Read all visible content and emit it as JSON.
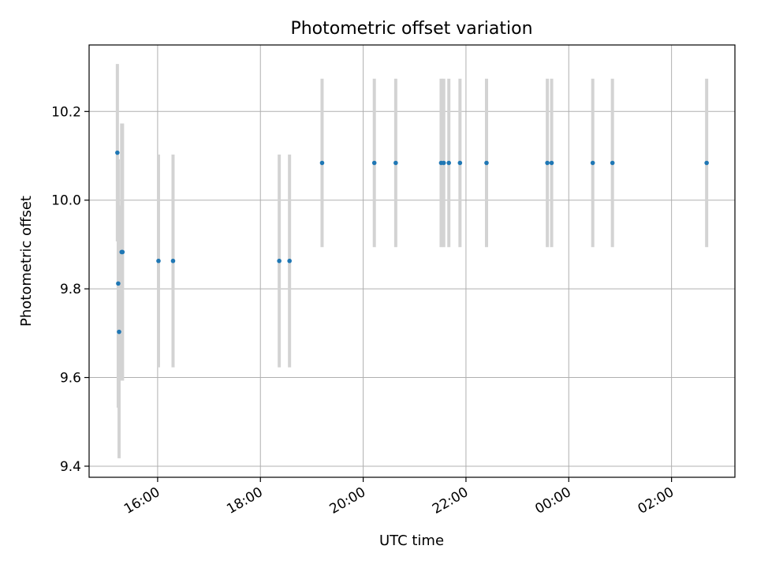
{
  "chart_data": {
    "type": "scatter",
    "title": "Photometric offset variation",
    "xlabel": "UTC time",
    "ylabel": "Photometric offset",
    "x_axis": {
      "type": "time",
      "tick_labels": [
        "16:00",
        "18:00",
        "20:00",
        "22:00",
        "00:00",
        "02:00"
      ],
      "tick_times": [
        "16:00",
        "18:00",
        "20:00",
        "22:00",
        "24:00",
        "26:00"
      ],
      "xlim": [
        "14:40",
        "27:14"
      ]
    },
    "ylim": [
      9.375,
      10.35
    ],
    "yticks": [
      9.4,
      9.6,
      9.8,
      10.0,
      10.2
    ],
    "grid": true,
    "marker_color": "#1f77b4",
    "errorbar_color": "#d3d3d3",
    "series": [
      {
        "points": [
          {
            "t": "15:13",
            "y": 10.107,
            "err": 0.2
          },
          {
            "t": "15:14",
            "y": 9.812,
            "err": 0.28
          },
          {
            "t": "15:15",
            "y": 9.703,
            "err": 0.285
          },
          {
            "t": "15:18",
            "y": 9.883,
            "err": 0.29
          },
          {
            "t": "15:19",
            "y": 9.883,
            "err": 0.29
          },
          {
            "t": "16:01",
            "y": 9.863,
            "err": 0.24
          },
          {
            "t": "16:18",
            "y": 9.863,
            "err": 0.24
          },
          {
            "t": "18:22",
            "y": 9.863,
            "err": 0.24
          },
          {
            "t": "18:34",
            "y": 9.863,
            "err": 0.24
          },
          {
            "t": "19:12",
            "y": 10.084,
            "err": 0.19
          },
          {
            "t": "20:13",
            "y": 10.084,
            "err": 0.19
          },
          {
            "t": "20:38",
            "y": 10.084,
            "err": 0.19
          },
          {
            "t": "21:31",
            "y": 10.084,
            "err": 0.19
          },
          {
            "t": "21:34",
            "y": 10.084,
            "err": 0.19
          },
          {
            "t": "21:40",
            "y": 10.084,
            "err": 0.19
          },
          {
            "t": "21:53",
            "y": 10.084,
            "err": 0.19
          },
          {
            "t": "22:24",
            "y": 10.084,
            "err": 0.19
          },
          {
            "t": "23:35",
            "y": 10.084,
            "err": 0.19
          },
          {
            "t": "23:40",
            "y": 10.084,
            "err": 0.19
          },
          {
            "t": "24:28",
            "y": 10.084,
            "err": 0.19
          },
          {
            "t": "24:51",
            "y": 10.084,
            "err": 0.19
          },
          {
            "t": "26:41",
            "y": 10.084,
            "err": 0.19
          }
        ]
      }
    ]
  }
}
